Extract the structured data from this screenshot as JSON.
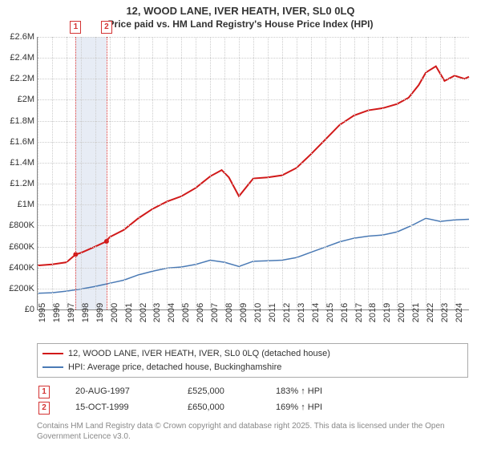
{
  "title": "12, WOOD LANE, IVER HEATH, IVER, SL0 0LQ",
  "subtitle": "Price paid vs. HM Land Registry's House Price Index (HPI)",
  "chart": {
    "type": "line",
    "background_color": "#ffffff",
    "grid_color": "#cccccc",
    "axis_color": "#888888",
    "y_axis": {
      "min": 0,
      "max": 2600000,
      "tick_step": 200000,
      "tick_labels": [
        "£0",
        "£200K",
        "£400K",
        "£600K",
        "£800K",
        "£1M",
        "£1.2M",
        "£1.4M",
        "£1.6M",
        "£1.8M",
        "£2M",
        "£2.2M",
        "£2.4M",
        "£2.6M"
      ]
    },
    "x_axis": {
      "min": 1995,
      "max": 2025,
      "tick_years": [
        1995,
        1996,
        1997,
        1998,
        1999,
        2000,
        2001,
        2002,
        2003,
        2004,
        2005,
        2006,
        2007,
        2008,
        2009,
        2010,
        2011,
        2012,
        2013,
        2014,
        2015,
        2016,
        2017,
        2018,
        2019,
        2020,
        2021,
        2022,
        2023,
        2024
      ]
    },
    "band": {
      "start_year": 1997.64,
      "end_year": 1999.79,
      "color": "#e7ecf5"
    },
    "markers": [
      {
        "id": "1",
        "year": 1997.64,
        "value": 525000
      },
      {
        "id": "2",
        "year": 1999.79,
        "value": 650000
      }
    ],
    "marker_color": "#d33333",
    "series": [
      {
        "name": "12, WOOD LANE, IVER HEATH, IVER, SL0 0LQ (detached house)",
        "color": "#d11919",
        "width": 2,
        "points": [
          [
            1995,
            420000
          ],
          [
            1996,
            430000
          ],
          [
            1997,
            450000
          ],
          [
            1997.64,
            525000
          ],
          [
            1998,
            540000
          ],
          [
            1999,
            600000
          ],
          [
            1999.79,
            650000
          ],
          [
            2000,
            690000
          ],
          [
            2001,
            760000
          ],
          [
            2002,
            870000
          ],
          [
            2003,
            960000
          ],
          [
            2004,
            1030000
          ],
          [
            2005,
            1080000
          ],
          [
            2006,
            1160000
          ],
          [
            2007,
            1270000
          ],
          [
            2007.8,
            1330000
          ],
          [
            2008.3,
            1260000
          ],
          [
            2009,
            1080000
          ],
          [
            2009.7,
            1200000
          ],
          [
            2010,
            1250000
          ],
          [
            2011,
            1260000
          ],
          [
            2012,
            1280000
          ],
          [
            2013,
            1350000
          ],
          [
            2014,
            1480000
          ],
          [
            2015,
            1620000
          ],
          [
            2016,
            1760000
          ],
          [
            2017,
            1850000
          ],
          [
            2018,
            1900000
          ],
          [
            2019,
            1920000
          ],
          [
            2020,
            1960000
          ],
          [
            2020.8,
            2020000
          ],
          [
            2021.5,
            2140000
          ],
          [
            2022,
            2260000
          ],
          [
            2022.7,
            2320000
          ],
          [
            2023.3,
            2180000
          ],
          [
            2024,
            2230000
          ],
          [
            2024.7,
            2200000
          ],
          [
            2025,
            2220000
          ]
        ]
      },
      {
        "name": "HPI: Average price, detached house, Buckinghamshire",
        "color": "#4a7ab5",
        "width": 1.5,
        "points": [
          [
            1995,
            155000
          ],
          [
            1996,
            160000
          ],
          [
            1997,
            175000
          ],
          [
            1998,
            195000
          ],
          [
            1999,
            220000
          ],
          [
            2000,
            250000
          ],
          [
            2001,
            280000
          ],
          [
            2002,
            330000
          ],
          [
            2003,
            365000
          ],
          [
            2004,
            395000
          ],
          [
            2005,
            405000
          ],
          [
            2006,
            430000
          ],
          [
            2007,
            470000
          ],
          [
            2008,
            450000
          ],
          [
            2009,
            410000
          ],
          [
            2010,
            460000
          ],
          [
            2011,
            465000
          ],
          [
            2012,
            470000
          ],
          [
            2013,
            495000
          ],
          [
            2014,
            545000
          ],
          [
            2015,
            595000
          ],
          [
            2016,
            645000
          ],
          [
            2017,
            680000
          ],
          [
            2018,
            700000
          ],
          [
            2019,
            710000
          ],
          [
            2020,
            740000
          ],
          [
            2021,
            800000
          ],
          [
            2022,
            870000
          ],
          [
            2023,
            840000
          ],
          [
            2024,
            855000
          ],
          [
            2025,
            860000
          ]
        ]
      }
    ]
  },
  "legend": {
    "items": [
      {
        "color": "#d11919",
        "label": "12, WOOD LANE, IVER HEATH, IVER, SL0 0LQ (detached house)"
      },
      {
        "color": "#4a7ab5",
        "label": "HPI: Average price, detached house, Buckinghamshire"
      }
    ]
  },
  "events": [
    {
      "id": "1",
      "date": "20-AUG-1997",
      "price": "£525,000",
      "hpi": "183% ↑ HPI"
    },
    {
      "id": "2",
      "date": "15-OCT-1999",
      "price": "£650,000",
      "hpi": "169% ↑ HPI"
    }
  ],
  "attribution": "Contains HM Land Registry data © Crown copyright and database right 2025. This data is licensed under the Open Government Licence v3.0."
}
